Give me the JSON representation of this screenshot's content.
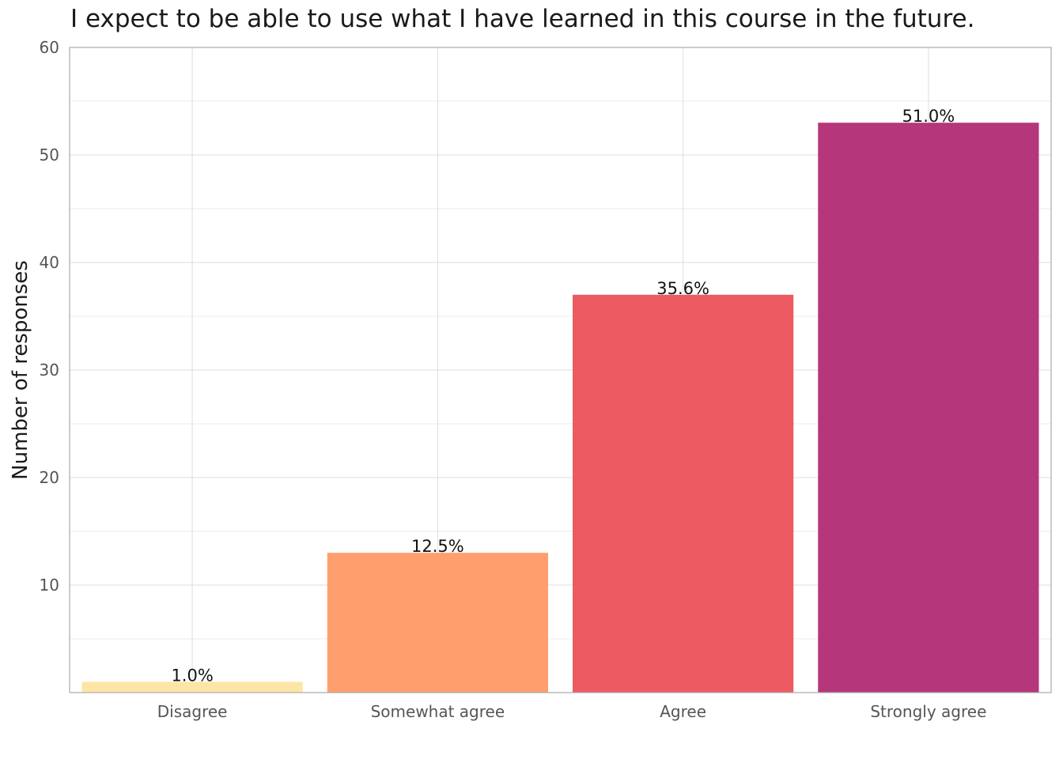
{
  "chart_data": {
    "type": "bar",
    "title": "I expect to be able to use what I have learned in this course in the future.",
    "xlabel": "",
    "ylabel": "Number of responses",
    "categories": [
      "Disagree",
      "Somewhat agree",
      "Agree",
      "Strongly agree"
    ],
    "values": [
      1,
      13,
      37,
      53
    ],
    "data_labels": [
      "1.0%",
      "12.5%",
      "35.6%",
      "51.0%"
    ],
    "colors": [
      "#fde5a6",
      "#fe9f6d",
      "#ec5b61",
      "#b5367a"
    ],
    "ylim": [
      0,
      60
    ],
    "yticks": [
      10,
      20,
      30,
      40,
      50,
      60
    ],
    "grid": true,
    "legend": "none"
  }
}
